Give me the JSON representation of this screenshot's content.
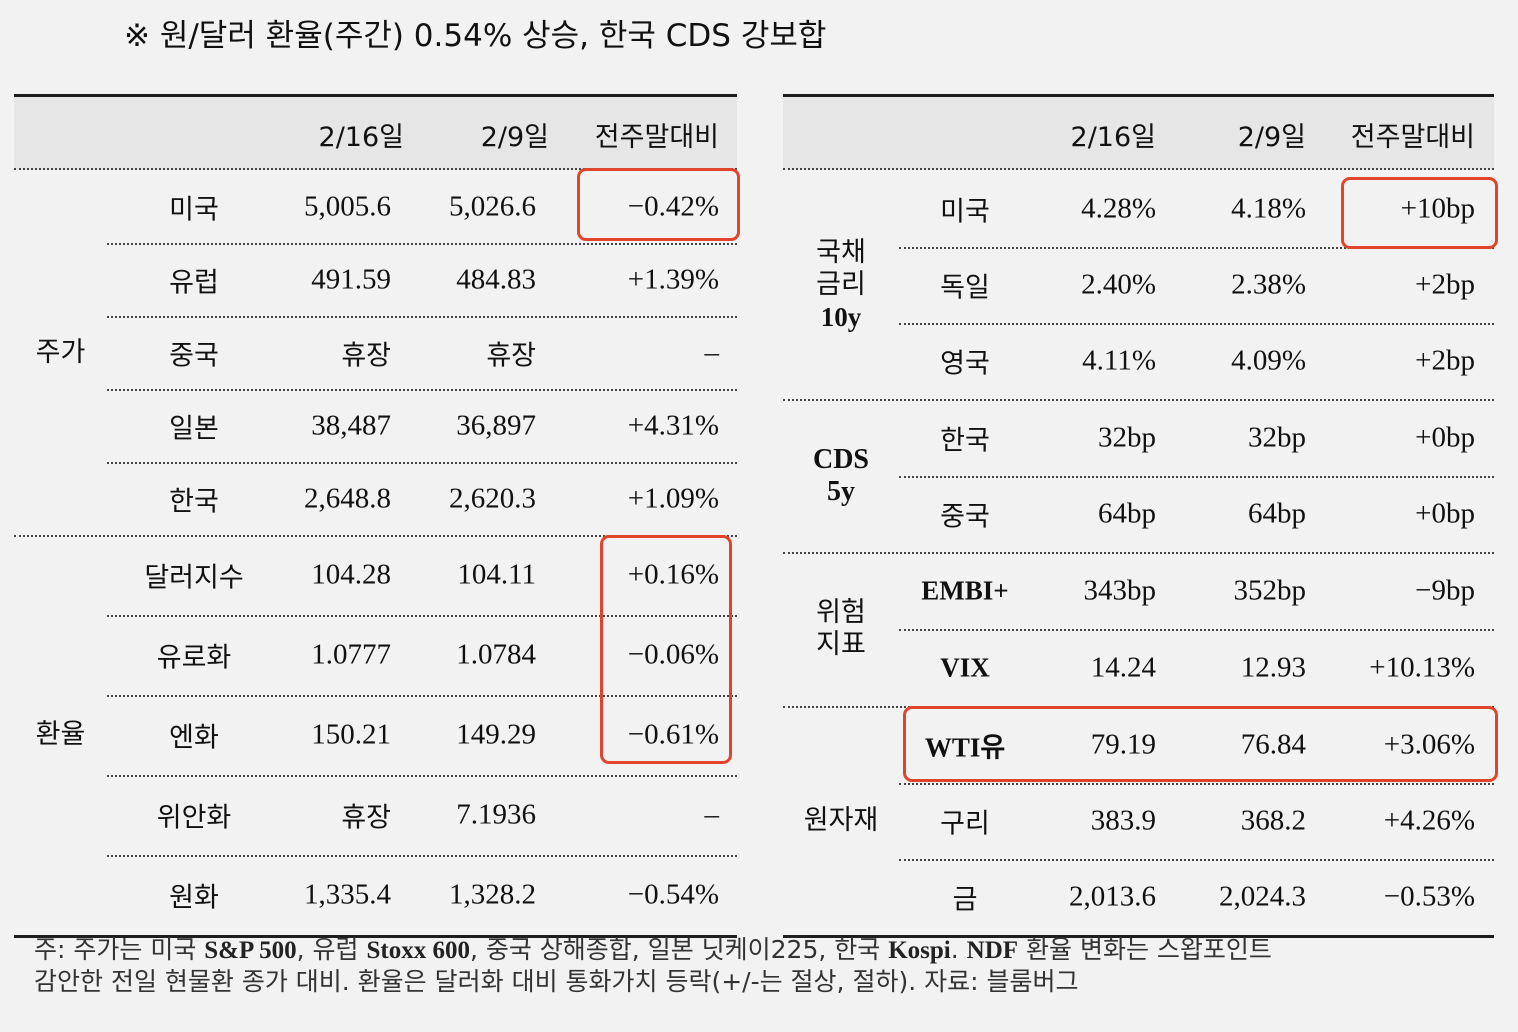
{
  "title": "※ 원/달러 환율(주간) 0.54% 상승, 한국 CDS 강보합",
  "headers": {
    "date1": "2/16일",
    "date2": "2/9일",
    "change": "전주말대비"
  },
  "left_groups": [
    {
      "label": "주가",
      "rows": [
        {
          "name": "미국",
          "v1": "5,005.6",
          "v2": "5,026.6",
          "chg": "−0.42%"
        },
        {
          "name": "유럽",
          "v1": "491.59",
          "v2": "484.83",
          "chg": "+1.39%"
        },
        {
          "name": "중국",
          "v1": "휴장",
          "v2": "휴장",
          "chg": "–"
        },
        {
          "name": "일본",
          "v1": "38,487",
          "v2": "36,897",
          "chg": "+4.31%"
        },
        {
          "name": "한국",
          "v1": "2,648.8",
          "v2": "2,620.3",
          "chg": "+1.09%"
        }
      ]
    },
    {
      "label": "환율",
      "rows": [
        {
          "name": "달러지수",
          "v1": "104.28",
          "v2": "104.11",
          "chg": "+0.16%"
        },
        {
          "name": "유로화",
          "v1": "1.0777",
          "v2": "1.0784",
          "chg": "−0.06%"
        },
        {
          "name": "엔화",
          "v1": "150.21",
          "v2": "149.29",
          "chg": "−0.61%"
        },
        {
          "name": "위안화",
          "v1": "휴장",
          "v2": "7.1936",
          "chg": "–"
        },
        {
          "name": "원화",
          "v1": "1,335.4",
          "v2": "1,328.2",
          "chg": "−0.54%"
        }
      ]
    }
  ],
  "right_groups": [
    {
      "label": "국채\n금리\n10y",
      "rows": [
        {
          "name": "미국",
          "v1": "4.28%",
          "v2": "4.18%",
          "chg": "+10bp"
        },
        {
          "name": "독일",
          "v1": "2.40%",
          "v2": "2.38%",
          "chg": "+2bp"
        },
        {
          "name": "영국",
          "v1": "4.11%",
          "v2": "4.09%",
          "chg": "+2bp"
        }
      ]
    },
    {
      "label": "CDS\n5y",
      "rows": [
        {
          "name": "한국",
          "v1": "32bp",
          "v2": "32bp",
          "chg": "+0bp"
        },
        {
          "name": "중국",
          "v1": "64bp",
          "v2": "64bp",
          "chg": "+0bp"
        }
      ]
    },
    {
      "label": "위험\n지표",
      "rows": [
        {
          "name": "EMBI+",
          "v1": "343bp",
          "v2": "352bp",
          "chg": "−9bp"
        },
        {
          "name": "VIX",
          "v1": "14.24",
          "v2": "12.93",
          "chg": "+10.13%"
        }
      ]
    },
    {
      "label": "원자재",
      "rows": [
        {
          "name": "WTI유",
          "v1": "79.19",
          "v2": "76.84",
          "chg": "+3.06%"
        },
        {
          "name": "구리",
          "v1": "383.9",
          "v2": "368.2",
          "chg": "+4.26%"
        },
        {
          "name": "금",
          "v1": "2,013.6",
          "v2": "2,024.3",
          "chg": "−0.53%"
        }
      ]
    }
  ],
  "note": {
    "line1_parts": [
      "주: 주가는 미국 ",
      "S&P 500",
      ", 유럽 ",
      "Stoxx 600",
      ", 중국 상해종합, 일본 닛케이225, 한국 ",
      "Kospi",
      ". ",
      "NDF",
      " 환율 변화는 스왑포인트"
    ],
    "line2": "감안한 전일 현물환 종가 대비. 환율은 달러화 대비 통화가치 등락(+/-는 절상, 절하). 자료: 블룸버그"
  },
  "highlight_color": "#e0452c"
}
